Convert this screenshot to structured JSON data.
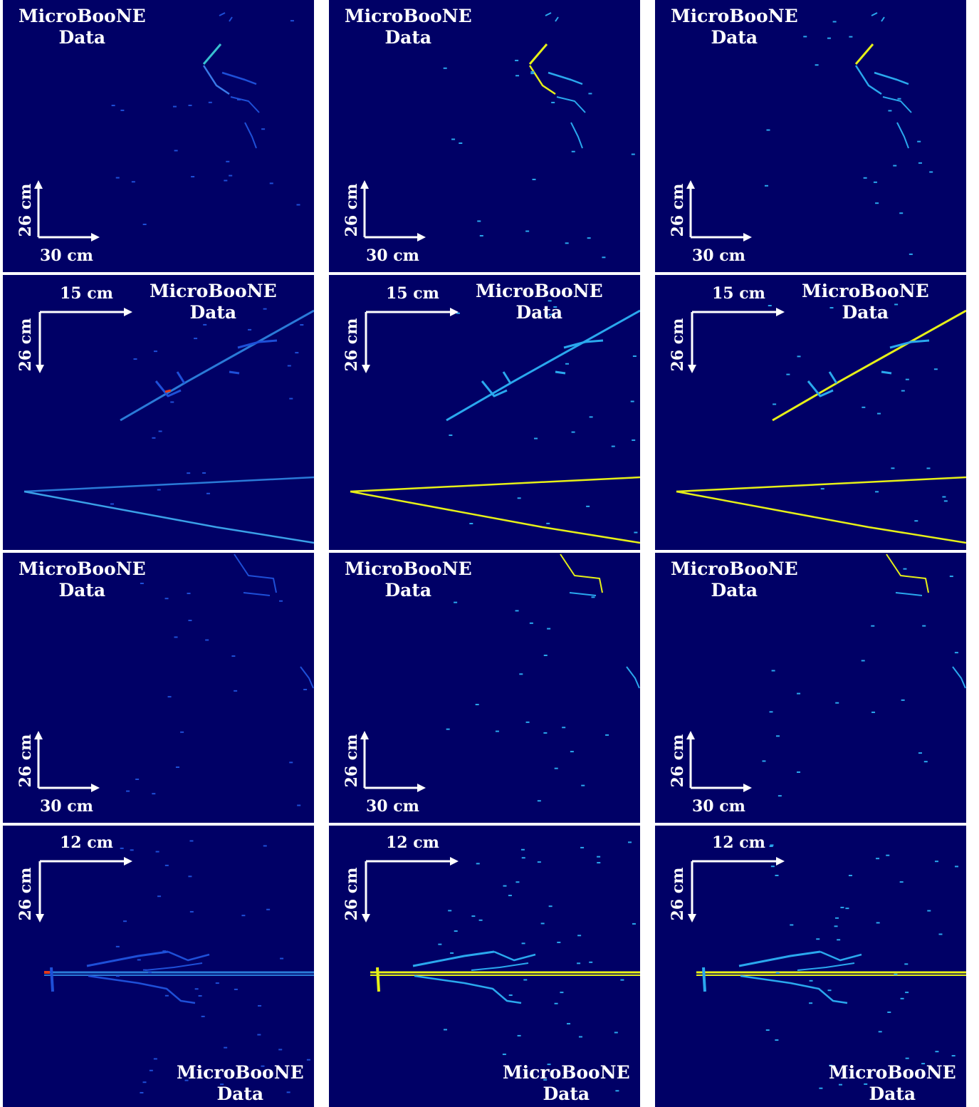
{
  "label": {
    "line1": "MicroBooNE",
    "line2": "Data"
  },
  "scales": {
    "row1": {
      "x": "30 cm",
      "y": "26 cm"
    },
    "row2": {
      "x": "15 cm",
      "y": "26 cm"
    },
    "row3": {
      "x": "30 cm",
      "y": "26 cm"
    },
    "row4": {
      "x": "12 cm",
      "y": "26 cm"
    }
  },
  "colors": {
    "background": "#000066",
    "charge_blue": "#1e4fd8",
    "shower_cyan": "#2aa8ee",
    "track_yellow": "#e6f018",
    "hot_red": "#e03a1a"
  },
  "columns": [
    "charge",
    "classification",
    "classification"
  ]
}
